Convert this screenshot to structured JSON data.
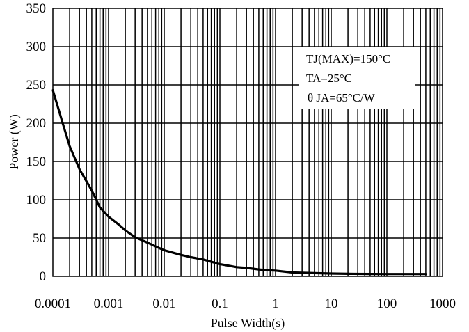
{
  "chart_data": {
    "type": "line",
    "title": "",
    "xlabel": "Pulse Width(s)",
    "ylabel": "Power (W)",
    "x_scale": "log",
    "xlim": [
      0.0001,
      1000
    ],
    "ylim": [
      0,
      350
    ],
    "grid": true,
    "x_ticks": [
      "0.0001",
      "0.001",
      "0.01",
      "0.1",
      "1",
      "10",
      "100",
      "1000"
    ],
    "y_ticks": [
      "0",
      "50",
      "100",
      "150",
      "200",
      "250",
      "300",
      "350"
    ],
    "annotations": [
      "TJ(MAX)=150°C",
      "TA=25°C",
      "θ JA=65°C/W"
    ],
    "line_color": "#000000",
    "series": [
      {
        "x": [
          0.0001,
          0.00015,
          0.0002,
          0.0003,
          0.0005,
          0.0007,
          0.001,
          0.0015,
          0.002,
          0.003,
          0.005,
          0.007,
          0.01,
          0.02,
          0.03,
          0.05,
          0.07,
          0.1,
          0.2,
          0.3,
          0.5,
          0.7,
          1,
          2,
          3,
          5,
          10,
          20,
          50,
          100,
          200,
          500
        ],
        "y": [
          243,
          200,
          170,
          140,
          112,
          90,
          78,
          68,
          60,
          51,
          44,
          39,
          34,
          28,
          25,
          22,
          19,
          16,
          12,
          11,
          9,
          8,
          7.5,
          5,
          4.6,
          4.2,
          3.6,
          3.3,
          3.1,
          3,
          3,
          3
        ]
      }
    ]
  }
}
